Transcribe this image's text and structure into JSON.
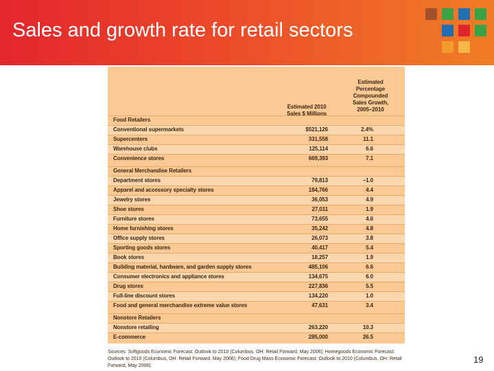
{
  "header": {
    "title": "Sales and growth rate for retail sectors"
  },
  "table": {
    "columns": [
      [
        "Estimated 2010",
        "Sales $ Millions"
      ],
      [
        "Estimated",
        "Percentage",
        "Compounded",
        "Sales Growth,",
        "2005–2010"
      ]
    ],
    "sections": [
      {
        "title": "Food Retailers",
        "rows": [
          [
            "Conventional supermarkets",
            "$521,126",
            "2.4%"
          ],
          [
            "Supercenters",
            "331,558",
            "11.1"
          ],
          [
            "Warehouse clubs",
            "125,114",
            "6.6"
          ],
          [
            "Convenience stores",
            "669,393",
            "7.1"
          ]
        ]
      },
      {
        "title": "General Merchandise Retailers",
        "rows": [
          [
            "Department stores",
            "79,813",
            "–1.0"
          ],
          [
            "Apparel and accessory specialty stores",
            "184,766",
            "4.4"
          ],
          [
            "Jewelry stores",
            "36,053",
            "4.9"
          ],
          [
            "Shoe stores",
            "27,011",
            "1.9"
          ],
          [
            "Furniture stores",
            "73,655",
            "4.6"
          ],
          [
            "Home furnishing stores",
            "35,242",
            "4.8"
          ],
          [
            "Office supply stores",
            "26,073",
            "3.8"
          ],
          [
            "Sporting goods stores",
            "40,417",
            "5.4"
          ],
          [
            "Book stores",
            "18,257",
            "1.9"
          ],
          [
            "Building material, hardware, and garden supply stores",
            "485,106",
            "6.6"
          ],
          [
            "Consumer electronics and appliance stores",
            "134,675",
            "6.0"
          ],
          [
            "Drug stores",
            "227,836",
            "5.5"
          ],
          [
            "Full-line discount stores",
            "134,220",
            "1.0"
          ],
          [
            "Food and general merchandise extreme value stores",
            "47,631",
            "3.4"
          ]
        ]
      },
      {
        "title": "Nonstore Retailers",
        "rows": [
          [
            "Nonstore retailing",
            "263,220",
            "10.3"
          ],
          [
            "E-commerce",
            "285,000",
            "26.5"
          ]
        ]
      }
    ]
  },
  "sources": "Sources: Softgoods Economic Forecast: Outlook to 2010 (Columbus, OH: Retail Forward, May 2006); Homegoods Economic Forecast: Outlook to 2010 (Columbus, OH: Retail Forward, May 2006); Food Drug Mass Economic Forecast: Outlook to 2010 (Columbus, OH: Retail Forward, May 2006).",
  "page_number": "19"
}
